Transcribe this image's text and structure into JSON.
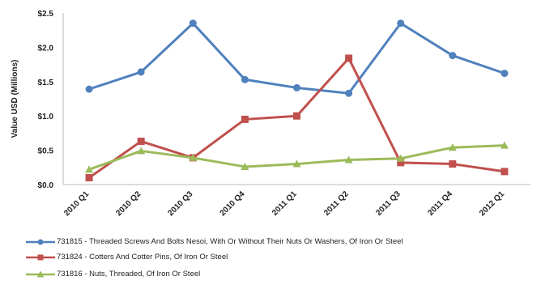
{
  "chart_data": {
    "type": "line",
    "title": "",
    "xlabel": "",
    "ylabel": "Value USD (Millions)",
    "categories": [
      "2010 Q1",
      "2010 Q2",
      "2010 Q3",
      "2010 Q4",
      "2011 Q1",
      "2011 Q2",
      "2011 Q3",
      "2011 Q4",
      "2012 Q1"
    ],
    "ylim": [
      0,
      2.5
    ],
    "yticks": [
      "$0.0",
      "$0.5",
      "$1.0",
      "$1.5",
      "$2.0",
      "$2.5"
    ],
    "grid": false,
    "legend_position": "bottom",
    "series": [
      {
        "name": "731815 - Threaded Screws And Bolts Nesoi, With Or Without Their Nuts Or Washers, Of Iron Or Steel",
        "color": "#4f81bd",
        "marker": "circle",
        "values": [
          1.39,
          1.64,
          2.35,
          1.53,
          1.41,
          1.33,
          2.35,
          1.88,
          1.62
        ]
      },
      {
        "name": "731824 - Cotters And Cotter Pins, Of Iron Or Steel",
        "color": "#c0504d",
        "marker": "square",
        "values": [
          0.1,
          0.63,
          0.39,
          0.95,
          1.0,
          1.84,
          0.32,
          0.3,
          0.19
        ]
      },
      {
        "name": "731816 - Nuts, Threaded, Of Iron Or Steel",
        "color": "#9bbb59",
        "marker": "triangle",
        "values": [
          0.22,
          0.49,
          0.39,
          0.26,
          0.3,
          0.36,
          0.38,
          0.54,
          0.57
        ]
      }
    ]
  }
}
